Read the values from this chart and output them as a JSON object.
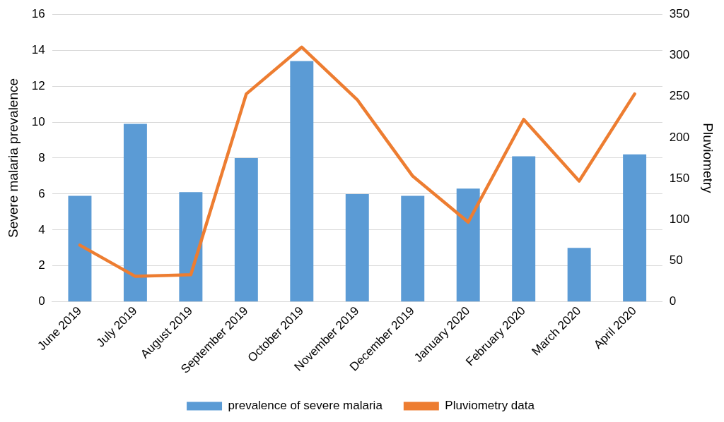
{
  "chart_data": {
    "type": "bar",
    "ylabel": "Severe malaria prevalence",
    "y2label": "Pluviometry",
    "categories": [
      "June 2019",
      "July 2019",
      "August 2019",
      "September 2019",
      "October 2019",
      "November 2019",
      "December 2019",
      "January 2020",
      "February 2020",
      "March 2020",
      "April 2020"
    ],
    "series": [
      {
        "name": "prevalence of severe malaria",
        "color": "#5b9bd5",
        "values": [
          5.9,
          9.9,
          6.1,
          8.0,
          13.4,
          6.0,
          5.9,
          6.3,
          8.1,
          3.0,
          8.2
        ]
      },
      {
        "name": "Pluviometry data",
        "type": "line",
        "axis": "y2",
        "color": "#ed7d31",
        "values": [
          69,
          31,
          33,
          253,
          310,
          246,
          153,
          97,
          222,
          147,
          253
        ]
      }
    ],
    "ylim": [
      0,
      16
    ],
    "yticks": [
      0,
      2,
      4,
      6,
      8,
      10,
      12,
      14,
      16
    ],
    "y2lim": [
      0,
      350
    ],
    "y2ticks": [
      0,
      50,
      100,
      150,
      200,
      250,
      300,
      350
    ],
    "grid": "y",
    "legend": "bottom",
    "marker": "none",
    "line_style": "solid"
  }
}
